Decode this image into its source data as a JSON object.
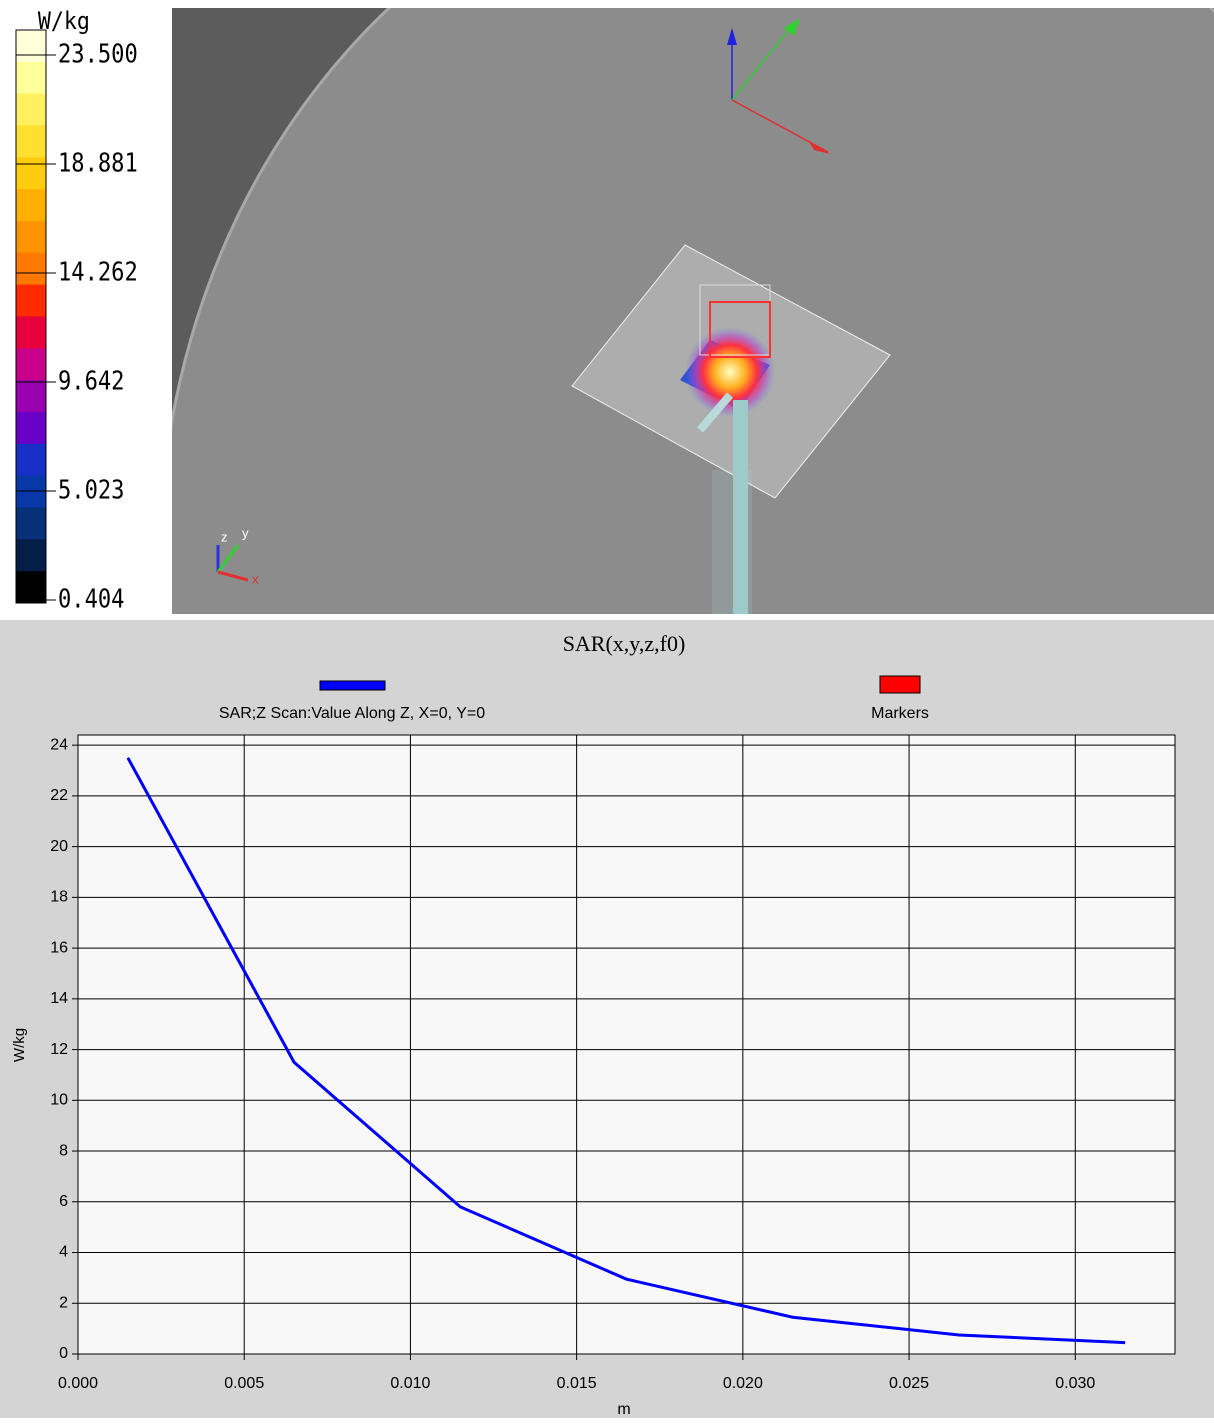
{
  "colorbar": {
    "unit": "W/kg",
    "ticks": [
      {
        "value": 23.5,
        "label": "23.500"
      },
      {
        "value": 18.881,
        "label": "18.881"
      },
      {
        "value": 14.262,
        "label": "14.262"
      },
      {
        "value": 9.642,
        "label": "9.642"
      },
      {
        "value": 5.023,
        "label": "5.023"
      },
      {
        "value": 0.404,
        "label": "0.404"
      }
    ],
    "colors": [
      "#ffffd8",
      "#ffff9a",
      "#fff060",
      "#ffe030",
      "#ffcc10",
      "#ffb000",
      "#ff9400",
      "#ff7800",
      "#ff2a00",
      "#e8003c",
      "#c8008a",
      "#9800b0",
      "#6800c8",
      "#1830c8",
      "#0838a8",
      "#063078",
      "#041e48",
      "#000000"
    ]
  },
  "view_axes": [
    "z",
    "y",
    "x"
  ],
  "chart_data": {
    "type": "line",
    "title": "SAR(x,y,z,f0)",
    "xlabel": "m",
    "ylabel": "W/kg",
    "x": [
      0.0015,
      0.0065,
      0.0115,
      0.0165,
      0.0215,
      0.0265,
      0.0315
    ],
    "series": [
      {
        "name": "SAR;Z Scan:Value Along Z, X=0, Y=0",
        "color": "#0000ff",
        "values": [
          23.5,
          11.5,
          5.8,
          2.95,
          1.45,
          0.75,
          0.45
        ]
      }
    ],
    "markers": {
      "name": "Markers",
      "color": "#ff0000"
    },
    "xlim": [
      0,
      0.033
    ],
    "ylim": [
      0,
      24.4
    ],
    "xticks": [
      {
        "value": 0,
        "label": "0.000"
      },
      0.005,
      {
        "value": 0.01,
        "label": "0.010"
      },
      0.015,
      {
        "value": 0.02,
        "label": "0.020"
      },
      0.025,
      {
        "value": 0.03,
        "label": "0.030"
      }
    ],
    "yticks": [
      0,
      2,
      4,
      6,
      8,
      10,
      12,
      14,
      16,
      18,
      20,
      22,
      24
    ],
    "grid": true
  }
}
